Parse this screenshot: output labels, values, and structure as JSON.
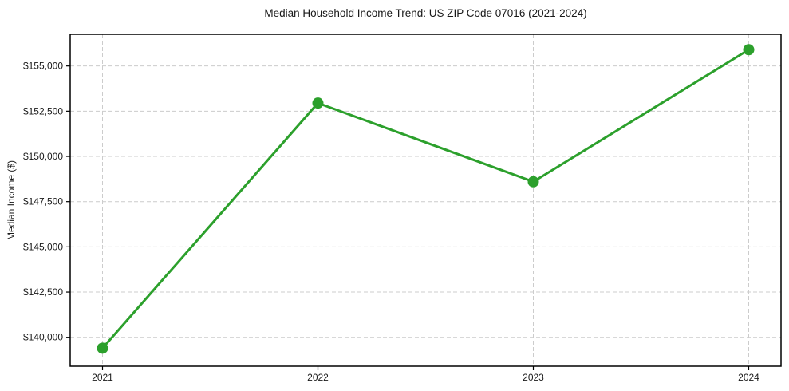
{
  "figure": {
    "background": "#ffffff"
  },
  "chart_data": {
    "type": "line",
    "title": "Median Household Income Trend: US ZIP Code 07016 (2021-2024)",
    "xlabel": "",
    "ylabel": "Median Income ($)",
    "x": [
      2021,
      2022,
      2023,
      2024
    ],
    "series": [
      {
        "name": "Median Household Income",
        "values": [
          139400,
          152950,
          148600,
          155900
        ],
        "color": "#2ca02c",
        "marker": "circle"
      }
    ],
    "xticks": [
      2021,
      2022,
      2023,
      2024
    ],
    "xtick_labels": [
      "2021",
      "2022",
      "2023",
      "2024"
    ],
    "yticks": [
      140000,
      142500,
      145000,
      147500,
      150000,
      152500,
      155000
    ],
    "ytick_labels": [
      "$140,000",
      "$142,500",
      "$145,000",
      "$147,500",
      "$150,000",
      "$152,500",
      "$155,000"
    ],
    "xlim": [
      2020.85,
      2024.15
    ],
    "ylim": [
      138400,
      156750
    ],
    "grid": true,
    "grid_color": "#cccccc",
    "grid_style": "dashed",
    "legend_position": "none",
    "axis_color": "#000000",
    "tick_label_color": "#1a1a1a",
    "line_width": 3,
    "marker_radius": 7
  }
}
